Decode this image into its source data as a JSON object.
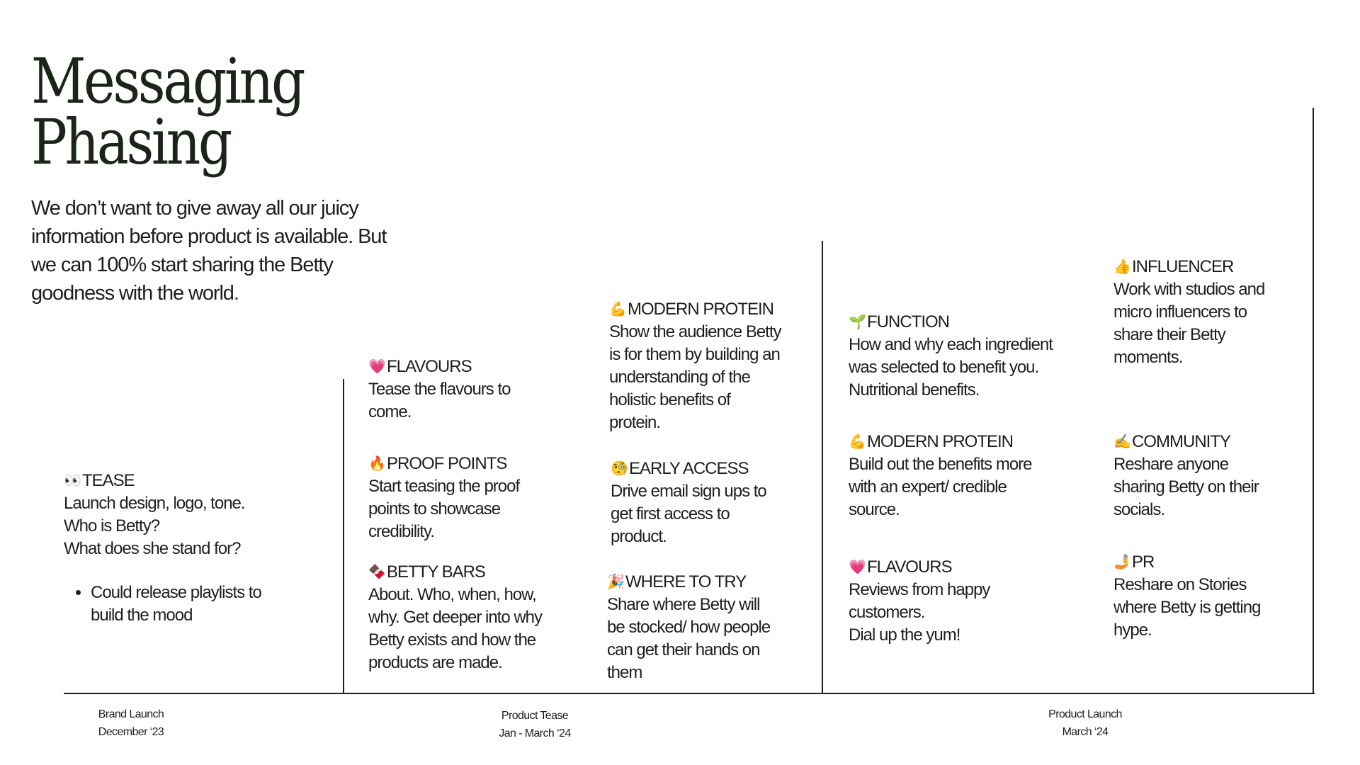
{
  "title": {
    "line1": "Messaging",
    "line2": "Phasing"
  },
  "intro": "We don’t want to give away all our juicy information before product is available. But we can 100% start sharing the Betty goodness with the world.",
  "columns": [
    {
      "blocks": [
        {
          "emoji": "👀",
          "emoji_name": "eyes-icon",
          "heading": "TEASE",
          "body": "Launch design, logo, tone.\nWho is Betty?\nWhat does she stand for?",
          "bullets": [
            "Could release playlists to build the mood"
          ]
        }
      ]
    },
    {
      "blocks": [
        {
          "emoji": "💗",
          "emoji_name": "pink-heart-icon",
          "heading": "FLAVOURS",
          "body": "Tease the flavours to\ncome."
        },
        {
          "emoji": "🔥",
          "emoji_name": "fire-icon",
          "heading": "PROOF POINTS",
          "body": "Start teasing the proof\npoints to showcase\ncredibility."
        },
        {
          "emoji": "🍫",
          "emoji_name": "chocolate-bar-icon",
          "heading": "BETTY BARS",
          "body": "About. Who, when, how,\nwhy. Get deeper into why\nBetty exists and how the\nproducts are made."
        }
      ]
    },
    {
      "blocks": [
        {
          "emoji": "💪",
          "emoji_name": "flexed-biceps-icon",
          "heading": "MODERN PROTEIN",
          "body": "Show the audience Betty\nis for them by building an\nunderstanding of the\nholistic benefits of\nprotein."
        },
        {
          "emoji": "🧐",
          "emoji_name": "monocle-face-icon",
          "heading": "EARLY ACCESS",
          "body": "Drive email sign ups to\nget first access to\nproduct."
        },
        {
          "emoji": "🎉",
          "emoji_name": "party-popper-icon",
          "heading": "WHERE TO TRY",
          "body": "Share where Betty will\nbe stocked/ how people\ncan get their hands on\nthem"
        }
      ]
    },
    {
      "blocks": [
        {
          "emoji": "🌱",
          "emoji_name": "seedling-icon",
          "heading": "FUNCTION",
          "body": "How and why each ingredient\nwas selected to benefit you.\nNutritional benefits."
        },
        {
          "emoji": "💪",
          "emoji_name": "flexed-biceps-icon",
          "heading": "MODERN PROTEIN",
          "body": "Build out the benefits more\nwith an expert/ credible\nsource."
        },
        {
          "emoji": "💗",
          "emoji_name": "pink-heart-icon",
          "heading": "FLAVOURS",
          "body": "Reviews from happy\ncustomers.\nDial up the yum!"
        }
      ]
    },
    {
      "blocks": [
        {
          "emoji": "👍",
          "emoji_name": "thumbs-up-icon",
          "heading": "INFLUENCER",
          "body": "Work with studios and\nmicro influencers to\nshare their Betty\nmoments."
        },
        {
          "emoji": "✍️",
          "emoji_name": "writing-hand-icon",
          "heading": "COMMUNITY",
          "body": "Reshare anyone\nsharing Betty on their\nsocials."
        },
        {
          "emoji": "🤳",
          "emoji_name": "selfie-icon",
          "heading": "PR",
          "body": "Reshare on Stories\nwhere Betty is getting\nhype."
        }
      ]
    }
  ],
  "phases": [
    {
      "name": "Brand Launch",
      "date": "December ‘23"
    },
    {
      "name": "Product Tease",
      "date": "Jan - March ‘24"
    },
    {
      "name": "Product Launch",
      "date": "March ‘24"
    }
  ]
}
